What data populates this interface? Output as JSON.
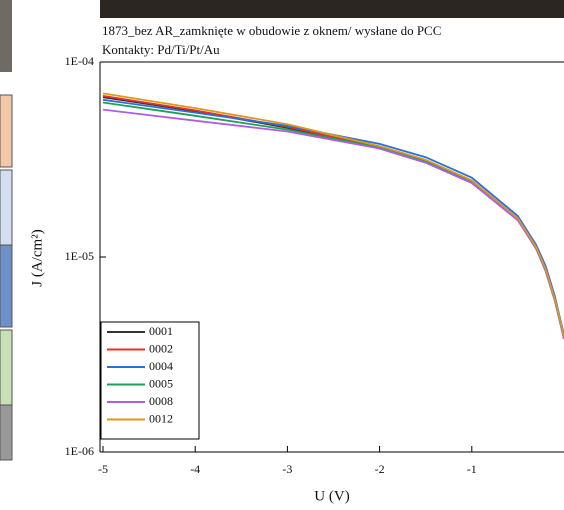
{
  "chart_data": {
    "type": "line",
    "title": "1873_bez AR_zamknięte w obudowie z oknem/ wysłane do PCC",
    "subtitle": "Kontakty: Pd/Ti/Pt/Au",
    "x_label": "U (V)",
    "y_label": "J (A/cm²)",
    "log_y": true,
    "legend": "lower left",
    "xlim": [
      -5,
      0
    ],
    "xticks": [
      -5,
      -4,
      -3,
      -2,
      -1
    ],
    "ylim": [
      1e-06,
      0.0001
    ],
    "yticks": [
      {
        "value": 1e-06,
        "label": "1E-06"
      },
      {
        "value": 1e-05,
        "label": "1E-05"
      },
      {
        "value": 0.0001,
        "label": "1E-04"
      }
    ],
    "x": [
      -5,
      -4,
      -3,
      -2,
      -1.5,
      -1,
      -0.5,
      -0.3,
      -0.2,
      -0.1,
      -0.05,
      0
    ],
    "series": [
      {
        "name": "0001",
        "color": "#333333",
        "values": [
          6.6e-05,
          5.6e-05,
          4.6e-05,
          3.6e-05,
          3.05e-05,
          2.4e-05,
          1.55e-05,
          1.1e-05,
          8.5e-06,
          6e-06,
          4.8e-06,
          3.8e-06
        ]
      },
      {
        "name": "0002",
        "color": "#e8302a",
        "values": [
          6.7e-05,
          5.65e-05,
          4.65e-05,
          3.65e-05,
          3.1e-05,
          2.45e-05,
          1.57e-05,
          1.12e-05,
          8.6e-06,
          6.1e-06,
          4.9e-06,
          3.9e-06
        ]
      },
      {
        "name": "0004",
        "color": "#2a6fdc",
        "values": [
          6.4e-05,
          5.5e-05,
          4.7e-05,
          3.8e-05,
          3.25e-05,
          2.55e-05,
          1.62e-05,
          1.15e-05,
          9e-06,
          6.3e-06,
          5e-06,
          4e-06
        ]
      },
      {
        "name": "0005",
        "color": "#1f9e5a",
        "values": [
          6.2e-05,
          5.3e-05,
          4.5e-05,
          3.65e-05,
          3.1e-05,
          2.45e-05,
          1.56e-05,
          1.1e-05,
          8.6e-06,
          6e-06,
          4.8e-06,
          3.8e-06
        ]
      },
      {
        "name": "0008",
        "color": "#b05ee0",
        "values": [
          5.7e-05,
          5e-05,
          4.4e-05,
          3.6e-05,
          3.05e-05,
          2.4e-05,
          1.54e-05,
          1.1e-05,
          8.5e-06,
          6e-06,
          4.8e-06,
          3.8e-06
        ]
      },
      {
        "name": "0012",
        "color": "#d99a1c",
        "values": [
          6.9e-05,
          5.8e-05,
          4.8e-05,
          3.7e-05,
          3.15e-05,
          2.47e-05,
          1.58e-05,
          1.12e-05,
          8.7e-06,
          6.1e-06,
          4.9e-06,
          3.9e-06
        ]
      }
    ]
  }
}
